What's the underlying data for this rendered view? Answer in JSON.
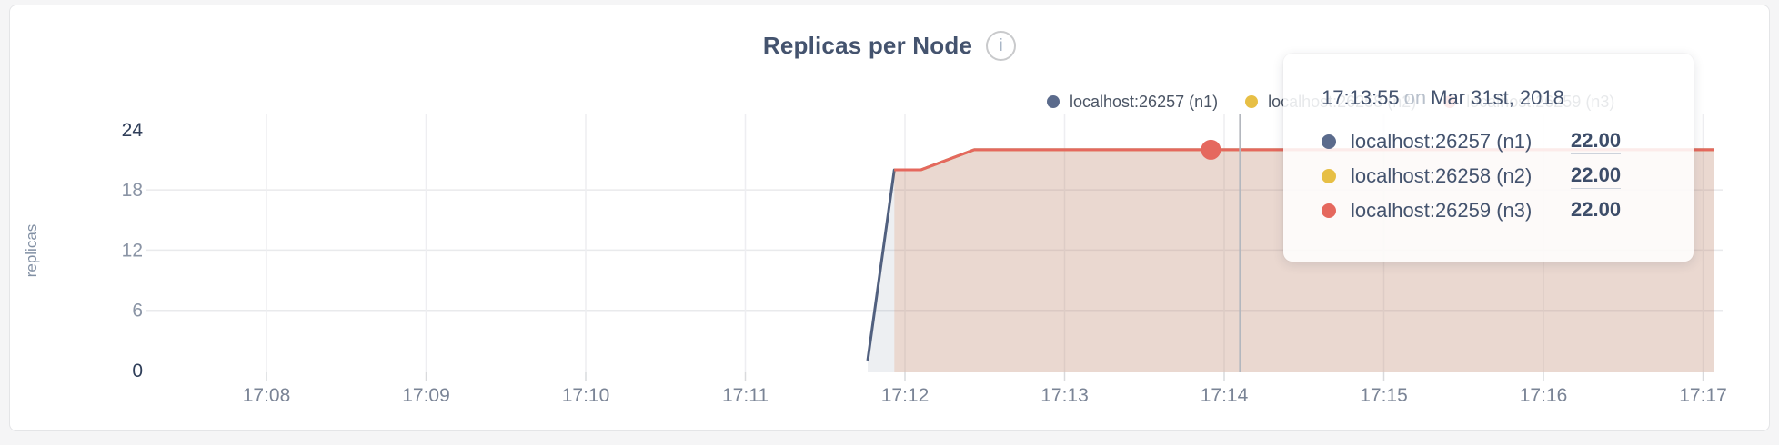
{
  "card": {
    "title": "Replicas per Node"
  },
  "icons": {
    "info_glyph": "i"
  },
  "legend": {
    "items": [
      {
        "label": "localhost:26257 (n1)",
        "color": "#5b6b8c"
      },
      {
        "label": "localhost:26258 (n2)",
        "color": "#e7bf45"
      },
      {
        "label": "localhost:26259 (n3)",
        "color": "#e5685e"
      }
    ]
  },
  "tooltip": {
    "time": "17:13:55",
    "connector": "on",
    "date": "Mar 31st, 2018",
    "rows": [
      {
        "name": "localhost:26257 (n1)",
        "value": "22.00",
        "color": "#5b6b8c"
      },
      {
        "name": "localhost:26258 (n2)",
        "value": "22.00",
        "color": "#e7bf45"
      },
      {
        "name": "localhost:26259 (n3)",
        "value": "22.00",
        "color": "#e5685e"
      }
    ]
  },
  "chart_data": {
    "type": "area",
    "title": "Replicas per Node",
    "xlabel": "",
    "ylabel": "replicas",
    "x_ticks": [
      "17:08",
      "17:09",
      "17:10",
      "17:11",
      "17:12",
      "17:13",
      "17:14",
      "17:15",
      "17:16",
      "17:17"
    ],
    "y_ticks": [
      0,
      6,
      12,
      18,
      24
    ],
    "ylim": [
      0,
      24
    ],
    "grid": true,
    "legend_position": "top-right",
    "series": [
      {
        "name": "localhost:26257 (n1)",
        "color": "#51607f",
        "fill_opacity": 0.1,
        "points": [
          [
            "17:11:46",
            1
          ],
          [
            "17:11:56",
            20
          ],
          [
            "17:12:06",
            20
          ],
          [
            "17:12:26",
            22
          ],
          [
            "17:17:04",
            22
          ]
        ]
      },
      {
        "name": "localhost:26258 (n2)",
        "color": "#e7bf45",
        "fill_opacity": 0.08,
        "points": [
          [
            "17:11:56",
            20
          ],
          [
            "17:12:06",
            20
          ],
          [
            "17:12:26",
            22
          ],
          [
            "17:17:04",
            22
          ]
        ]
      },
      {
        "name": "localhost:26259 (n3)",
        "color": "#e5685e",
        "fill_opacity": 0.14,
        "points": [
          [
            "17:11:56",
            20
          ],
          [
            "17:12:06",
            20
          ],
          [
            "17:12:26",
            22
          ],
          [
            "17:17:04",
            22
          ]
        ]
      }
    ],
    "hover": {
      "time": "17:13:55",
      "value": 22,
      "series": "localhost:26259 (n3)"
    }
  }
}
